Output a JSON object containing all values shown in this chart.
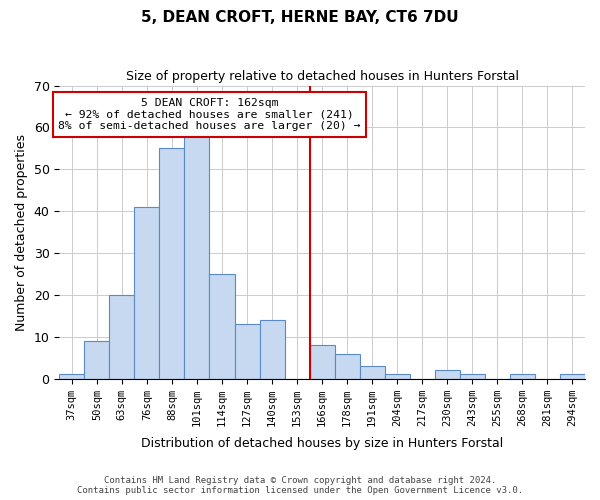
{
  "title": "5, DEAN CROFT, HERNE BAY, CT6 7DU",
  "subtitle": "Size of property relative to detached houses in Hunters Forstal",
  "xlabel": "Distribution of detached houses by size in Hunters Forstal",
  "ylabel": "Number of detached properties",
  "bin_labels": [
    "37sqm",
    "50sqm",
    "63sqm",
    "76sqm",
    "88sqm",
    "101sqm",
    "114sqm",
    "127sqm",
    "140sqm",
    "153sqm",
    "166sqm",
    "178sqm",
    "191sqm",
    "204sqm",
    "217sqm",
    "230sqm",
    "243sqm",
    "255sqm",
    "268sqm",
    "281sqm",
    "294sqm"
  ],
  "bar_heights": [
    1,
    9,
    20,
    41,
    55,
    58,
    25,
    13,
    14,
    0,
    8,
    6,
    3,
    1,
    0,
    2,
    1,
    0,
    1,
    0,
    1
  ],
  "bar_color": "#c6d9f0",
  "bar_edge_color": "#5a8ac6",
  "vline_x": 9.5,
  "vline_color": "#cc0000",
  "ylim": [
    0,
    70
  ],
  "yticks": [
    0,
    10,
    20,
    30,
    40,
    50,
    60,
    70
  ],
  "annotation_title": "5 DEAN CROFT: 162sqm",
  "annotation_line1": "← 92% of detached houses are smaller (241)",
  "annotation_line2": "8% of semi-detached houses are larger (20) →",
  "annotation_box_color": "#ffffff",
  "annotation_box_edge": "#cc0000",
  "footer_line1": "Contains HM Land Registry data © Crown copyright and database right 2024.",
  "footer_line2": "Contains public sector information licensed under the Open Government Licence v3.0."
}
